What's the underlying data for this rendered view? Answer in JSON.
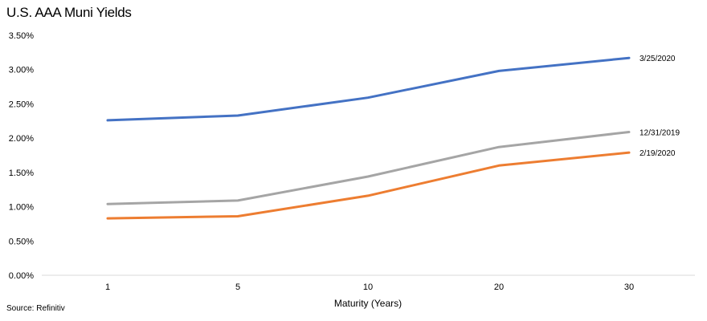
{
  "chart_data": {
    "type": "line",
    "title": "U.S. AAA Muni Yields",
    "xlabel": "Maturity (Years)",
    "ylabel": "",
    "categories": [
      "1",
      "5",
      "10",
      "20",
      "30"
    ],
    "ylim": [
      0,
      3.5
    ],
    "yticks": [
      "0.00%",
      "0.50%",
      "1.00%",
      "1.50%",
      "2.00%",
      "2.50%",
      "3.00%",
      "3.50%"
    ],
    "grid": false,
    "legend": "series labels at right end of lines",
    "series": [
      {
        "name": "3/25/2020",
        "color": "#4472C4",
        "values": [
          2.26,
          2.33,
          2.59,
          2.98,
          3.17
        ]
      },
      {
        "name": "12/31/2019",
        "color": "#A5A5A5",
        "values": [
          1.04,
          1.09,
          1.44,
          1.87,
          2.09
        ]
      },
      {
        "name": "2/19/2020",
        "color": "#ED7D31",
        "values": [
          0.83,
          0.86,
          1.16,
          1.6,
          1.79
        ]
      }
    ],
    "source": "Source: Refinitiv"
  }
}
